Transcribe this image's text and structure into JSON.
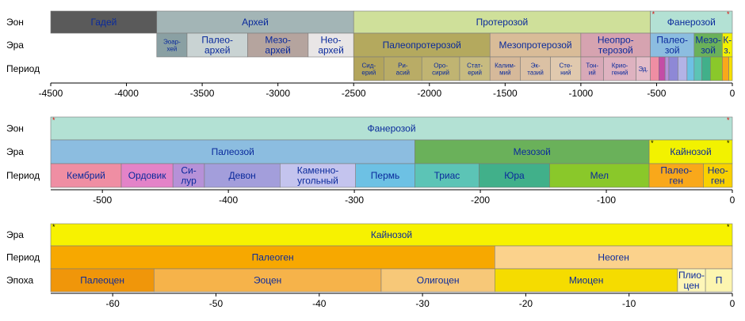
{
  "panels": [
    {
      "id": "precambrian-scale",
      "domain": [
        -4500,
        0
      ],
      "rows": [
        {
          "label": "Эон",
          "segments": [
            {
              "start": -4600,
              "end": -3800,
              "lines": [
                "Гадей"
              ],
              "color": "#5a5a5a"
            },
            {
              "start": -3800,
              "end": -2500,
              "lines": [
                "Архей"
              ],
              "color": "#a3b5b6"
            },
            {
              "start": -2500,
              "end": -541,
              "lines": [
                "Протерозой"
              ],
              "color": "#cfe09a"
            },
            {
              "start": -541,
              "end": 0,
              "lines": [
                "Фанерозой"
              ],
              "color": "#b3e1d4",
              "star_left": "red",
              "star_right": "red"
            }
          ]
        },
        {
          "label": "Эра",
          "segments": [
            {
              "start": -3800,
              "end": -3600,
              "lines": [
                "Эоар-",
                "хей"
              ],
              "color": "#8aa0a3",
              "small": true
            },
            {
              "start": -3600,
              "end": -3200,
              "lines": [
                "Палео-",
                "архей"
              ],
              "color": "#c9d3d3"
            },
            {
              "start": -3200,
              "end": -2800,
              "lines": [
                "Мезо-",
                "архей"
              ],
              "color": "#b5a49e"
            },
            {
              "start": -2800,
              "end": -2500,
              "lines": [
                "Нео-",
                "архей"
              ],
              "color": "#e9e6e6"
            },
            {
              "start": -2500,
              "end": -1600,
              "lines": [
                "Палеопротерозой"
              ],
              "color": "#b4a95e"
            },
            {
              "start": -1600,
              "end": -1000,
              "lines": [
                "Мезопротерозой"
              ],
              "color": "#d9bc98"
            },
            {
              "start": -1000,
              "end": -541,
              "lines": [
                "Неопро-",
                "терозой"
              ],
              "color": "#d6a3b0"
            },
            {
              "start": -541,
              "end": -252,
              "lines": [
                "Палео-",
                "зой"
              ],
              "color": "#8cbde0"
            },
            {
              "start": -252,
              "end": -66,
              "lines": [
                "Мезо-",
                "зой"
              ],
              "color": "#6ab15a"
            },
            {
              "start": -66,
              "end": 0,
              "lines": [
                "К-",
                "з."
              ],
              "color": "#f2f200"
            }
          ]
        },
        {
          "label": "Период",
          "segments": [
            {
              "start": -2500,
              "end": -2300,
              "lines": [
                "Сид-",
                "ерий"
              ],
              "color": "#b3a55c",
              "small": true
            },
            {
              "start": -2300,
              "end": -2050,
              "lines": [
                "Ри-",
                "асий"
              ],
              "color": "#b9ac66",
              "small": true
            },
            {
              "start": -2050,
              "end": -1800,
              "lines": [
                "Оро-",
                "сирий"
              ],
              "color": "#c0b472",
              "small": true
            },
            {
              "start": -1800,
              "end": -1600,
              "lines": [
                "Стат-",
                "ерий"
              ],
              "color": "#c7bb80",
              "small": true
            },
            {
              "start": -1600,
              "end": -1400,
              "lines": [
                "Калим-",
                "мий"
              ],
              "color": "#d6b99a",
              "small": true
            },
            {
              "start": -1400,
              "end": -1200,
              "lines": [
                "Эк-",
                "тазий"
              ],
              "color": "#dbc1a4",
              "small": true
            },
            {
              "start": -1200,
              "end": -1000,
              "lines": [
                "Сте-",
                "ний"
              ],
              "color": "#e0c9ae",
              "small": true
            },
            {
              "start": -1000,
              "end": -850,
              "lines": [
                "Тон-",
                "ий"
              ],
              "color": "#d8a9b8",
              "small": true
            },
            {
              "start": -850,
              "end": -635,
              "lines": [
                "Крио-",
                "гений"
              ],
              "color": "#deb2c0",
              "small": true
            },
            {
              "start": -635,
              "end": -541,
              "lines": [
                "Эд."
              ],
              "color": "#e4bdc9",
              "small": true
            },
            {
              "start": -541,
              "end": -485,
              "lines": [
                ""
              ],
              "color": "#ef8ea3"
            },
            {
              "start": -485,
              "end": -444,
              "lines": [
                ""
              ],
              "color": "#c34da6"
            },
            {
              "start": -444,
              "end": -419,
              "lines": [
                ""
              ],
              "color": "#b691d8"
            },
            {
              "start": -419,
              "end": -359,
              "lines": [
                ""
              ],
              "color": "#8e88d6"
            },
            {
              "start": -359,
              "end": -299,
              "lines": [
                ""
              ],
              "color": "#b3b3e6"
            },
            {
              "start": -299,
              "end": -252,
              "lines": [
                ""
              ],
              "color": "#6dc1e4"
            },
            {
              "start": -252,
              "end": -201,
              "lines": [
                ""
              ],
              "color": "#5cc4b6"
            },
            {
              "start": -201,
              "end": -145,
              "lines": [
                ""
              ],
              "color": "#41b08a"
            },
            {
              "start": -145,
              "end": -66,
              "lines": [
                ""
              ],
              "color": "#8ac82a"
            },
            {
              "start": -66,
              "end": -23,
              "lines": [
                ""
              ],
              "color": "#f9a81a"
            },
            {
              "start": -23,
              "end": 0,
              "lines": [
                ""
              ],
              "color": "#f7e000"
            }
          ]
        }
      ],
      "ticks": [
        {
          "value": -4500,
          "label": "-4500"
        },
        {
          "value": -4000,
          "label": "-4000"
        },
        {
          "value": -3500,
          "label": "-3500"
        },
        {
          "value": -3000,
          "label": "-3000"
        },
        {
          "value": -2500,
          "label": "-2500"
        },
        {
          "value": -2000,
          "label": "-2000"
        },
        {
          "value": -1500,
          "label": "-1500"
        },
        {
          "value": -1000,
          "label": "-1000"
        },
        {
          "value": -500,
          "label": "-500"
        },
        {
          "value": 0,
          "label": "0"
        }
      ]
    },
    {
      "id": "phanerozoic-scale",
      "domain": [
        -541,
        0
      ],
      "rows": [
        {
          "label": "Эон",
          "segments": [
            {
              "start": -541,
              "end": 0,
              "lines": [
                "Фанерозой"
              ],
              "color": "#b3e1d4",
              "star_left": "red",
              "star_right": "red"
            }
          ]
        },
        {
          "label": "Эра",
          "segments": [
            {
              "start": -541,
              "end": -252,
              "lines": [
                "Палеозой"
              ],
              "color": "#8cbde0"
            },
            {
              "start": -252,
              "end": -66,
              "lines": [
                "Мезозой"
              ],
              "color": "#6ab15a"
            },
            {
              "start": -66,
              "end": 0,
              "lines": [
                "Кайнозой"
              ],
              "color": "#f2f200",
              "star_left": "black",
              "star_right": "black"
            }
          ]
        },
        {
          "label": "Период",
          "segments": [
            {
              "start": -541,
              "end": -485,
              "lines": [
                "Кембрий"
              ],
              "color": "#ef8ea3"
            },
            {
              "start": -485,
              "end": -444,
              "lines": [
                "Ордовик"
              ],
              "color": "#e383c8"
            },
            {
              "start": -444,
              "end": -419,
              "lines": [
                "Си-",
                "лур"
              ],
              "color": "#b691d8"
            },
            {
              "start": -419,
              "end": -359,
              "lines": [
                "Девон"
              ],
              "color": "#a39edb"
            },
            {
              "start": -359,
              "end": -299,
              "lines": [
                "Каменно-",
                "угольный"
              ],
              "color": "#c4c4ee"
            },
            {
              "start": -299,
              "end": -252,
              "lines": [
                "Пермь"
              ],
              "color": "#6dc1e4"
            },
            {
              "start": -252,
              "end": -201,
              "lines": [
                "Триас"
              ],
              "color": "#5cc4b6"
            },
            {
              "start": -201,
              "end": -145,
              "lines": [
                "Юра"
              ],
              "color": "#41b08a"
            },
            {
              "start": -145,
              "end": -66,
              "lines": [
                "Мел"
              ],
              "color": "#8ac82a"
            },
            {
              "start": -66,
              "end": -23,
              "lines": [
                "Палео-",
                "ген"
              ],
              "color": "#f9a81a"
            },
            {
              "start": -23,
              "end": 0,
              "lines": [
                "Нео-",
                "ген"
              ],
              "color": "#f9d100"
            }
          ]
        }
      ],
      "ticks": [
        {
          "value": -500,
          "label": "-500"
        },
        {
          "value": -400,
          "label": "-400"
        },
        {
          "value": -300,
          "label": "-300"
        },
        {
          "value": -200,
          "label": "-200"
        },
        {
          "value": -100,
          "label": "-100"
        },
        {
          "value": 0,
          "label": "0"
        }
      ]
    },
    {
      "id": "cenozoic-scale",
      "domain": [
        -66,
        0
      ],
      "rows": [
        {
          "label": "Эра",
          "segments": [
            {
              "start": -66,
              "end": 0,
              "lines": [
                "Кайнозой"
              ],
              "color": "#f7f200",
              "star_left": "black",
              "star_right": "black"
            }
          ]
        },
        {
          "label": "Период",
          "segments": [
            {
              "start": -66,
              "end": -23,
              "lines": [
                "Палеоген"
              ],
              "color": "#f7a800"
            },
            {
              "start": -23,
              "end": 0,
              "lines": [
                "Неоген"
              ],
              "color": "#fbd28c"
            }
          ]
        },
        {
          "label": "Эпоха",
          "segments": [
            {
              "start": -66,
              "end": -56,
              "lines": [
                "Палеоцен"
              ],
              "color": "#f0960a"
            },
            {
              "start": -56,
              "end": -34,
              "lines": [
                "Эоцен"
              ],
              "color": "#f6b34a"
            },
            {
              "start": -34,
              "end": -23,
              "lines": [
                "Олигоцен"
              ],
              "color": "#f7c878"
            },
            {
              "start": -23,
              "end": -5.3,
              "lines": [
                "Миоцен"
              ],
              "color": "#f5dc00"
            },
            {
              "start": -5.3,
              "end": -2.6,
              "lines": [
                "Плио-",
                "цен"
              ],
              "color": "#fef6b8"
            },
            {
              "start": -2.6,
              "end": 0,
              "lines": [
                "П"
              ],
              "color": "#fdf5b0"
            }
          ]
        }
      ],
      "ticks": [
        {
          "value": -60,
          "label": "-60"
        },
        {
          "value": -50,
          "label": "-50"
        },
        {
          "value": -40,
          "label": "-40"
        },
        {
          "value": -30,
          "label": "-30"
        },
        {
          "value": -20,
          "label": "-20"
        },
        {
          "value": -10,
          "label": "-10"
        },
        {
          "value": 0,
          "label": "0"
        }
      ]
    }
  ]
}
